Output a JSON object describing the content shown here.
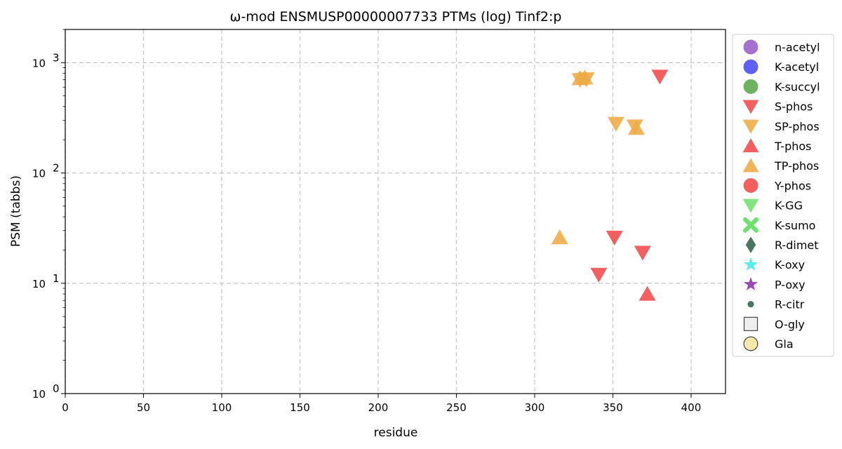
{
  "chart_data": {
    "type": "scatter",
    "title": "ω-mod ENSMUSP00000007733 PTMs (log) Tinf2:p",
    "xlabel": "residue",
    "ylabel": "PSM (tabbs)",
    "xlim": [
      0,
      422
    ],
    "ylim": [
      1,
      2000
    ],
    "yscale": "log",
    "grid": true,
    "legend_position": "right",
    "x_ticks": [
      "0",
      "50",
      "100",
      "150",
      "200",
      "250",
      "300",
      "350",
      "400"
    ],
    "y_ticks": [
      {
        "base": "10",
        "exp": "0"
      },
      {
        "base": "10",
        "exp": "1"
      },
      {
        "base": "10",
        "exp": "2"
      },
      {
        "base": "10",
        "exp": "3"
      }
    ],
    "legend": [
      {
        "label": "n-acetyl",
        "marker": "circle",
        "color": "#9a5cc9"
      },
      {
        "label": "K-acetyl",
        "marker": "circle",
        "color": "#4a4af0"
      },
      {
        "label": "K-succyl",
        "marker": "circle",
        "color": "#5aa64a"
      },
      {
        "label": "S-phos",
        "marker": "triangle-down",
        "color": "#f04a4a"
      },
      {
        "label": "SP-phos",
        "marker": "triangle-down",
        "color": "#eeaa44"
      },
      {
        "label": "T-phos",
        "marker": "triangle-up",
        "color": "#f04a4a"
      },
      {
        "label": "TP-phos",
        "marker": "triangle-up",
        "color": "#eeaa44"
      },
      {
        "label": "Y-phos",
        "marker": "circle",
        "color": "#f04a4a"
      },
      {
        "label": "K-GG",
        "marker": "triangle-down",
        "color": "#6ee06e"
      },
      {
        "label": "K-sumo",
        "marker": "x",
        "color": "#6ee06e"
      },
      {
        "label": "R-dimet",
        "marker": "diamond",
        "color": "#4a7560"
      },
      {
        "label": "K-oxy",
        "marker": "star",
        "color": "#55eeee"
      },
      {
        "label": "P-oxy",
        "marker": "star",
        "color": "#9a4ab0"
      },
      {
        "label": "R-citr",
        "marker": "small-circle",
        "color": "#4a7560"
      },
      {
        "label": "O-gly",
        "marker": "square-open",
        "color": "#eeeeee"
      },
      {
        "label": "Gla",
        "marker": "circle-open",
        "color": "#f6e8a8"
      }
    ],
    "series": [
      {
        "name": "S-phos",
        "points": [
          {
            "x": 341,
            "y": 12
          },
          {
            "x": 351,
            "y": 26
          },
          {
            "x": 369,
            "y": 19
          },
          {
            "x": 380,
            "y": 750
          }
        ]
      },
      {
        "name": "SP-phos",
        "points": [
          {
            "x": 329,
            "y": 700
          },
          {
            "x": 333,
            "y": 710
          },
          {
            "x": 352,
            "y": 280
          },
          {
            "x": 364,
            "y": 265
          }
        ]
      },
      {
        "name": "T-phos",
        "points": [
          {
            "x": 372,
            "y": 8
          }
        ]
      },
      {
        "name": "TP-phos",
        "points": [
          {
            "x": 316,
            "y": 26
          },
          {
            "x": 329,
            "y": 720
          },
          {
            "x": 332,
            "y": 730
          },
          {
            "x": 365,
            "y": 255
          }
        ]
      }
    ]
  }
}
